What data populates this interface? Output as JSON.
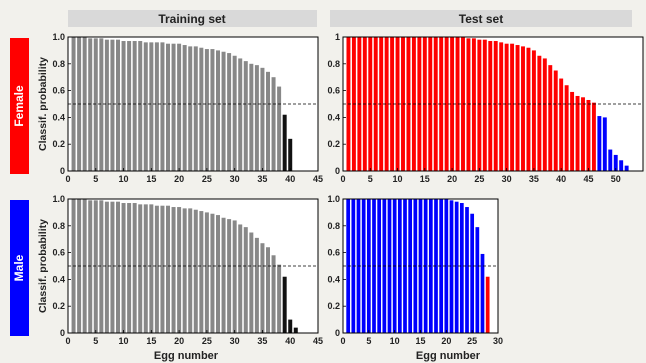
{
  "headers": {
    "training": "Training set",
    "test": "Test set"
  },
  "rows": {
    "female": {
      "label": "Female",
      "color": "#ff0000"
    },
    "male": {
      "label": "Male",
      "color": "#0000ff"
    }
  },
  "ylabel": "Classif. probability",
  "xlabel": "Egg number",
  "chart_data": [
    {
      "type": "bar",
      "panel": "training-female",
      "x": [
        1,
        2,
        3,
        4,
        5,
        6,
        7,
        8,
        9,
        10,
        11,
        12,
        13,
        14,
        15,
        16,
        17,
        18,
        19,
        20,
        21,
        22,
        23,
        24,
        25,
        26,
        27,
        28,
        29,
        30,
        31,
        32,
        33,
        34,
        35,
        36,
        37,
        38,
        39,
        40
      ],
      "values": [
        1.0,
        1.0,
        1.0,
        0.99,
        0.99,
        0.99,
        0.98,
        0.98,
        0.98,
        0.97,
        0.97,
        0.97,
        0.97,
        0.96,
        0.96,
        0.96,
        0.96,
        0.95,
        0.95,
        0.95,
        0.94,
        0.93,
        0.93,
        0.92,
        0.91,
        0.91,
        0.9,
        0.89,
        0.88,
        0.86,
        0.84,
        0.82,
        0.8,
        0.79,
        0.77,
        0.74,
        0.7,
        0.63,
        0.42,
        0.24
      ],
      "colors": [
        "#888888",
        "#888888",
        "#888888",
        "#888888",
        "#888888",
        "#888888",
        "#888888",
        "#888888",
        "#888888",
        "#888888",
        "#888888",
        "#888888",
        "#888888",
        "#888888",
        "#888888",
        "#888888",
        "#888888",
        "#888888",
        "#888888",
        "#888888",
        "#888888",
        "#888888",
        "#888888",
        "#888888",
        "#888888",
        "#888888",
        "#888888",
        "#888888",
        "#888888",
        "#888888",
        "#888888",
        "#888888",
        "#888888",
        "#888888",
        "#888888",
        "#888888",
        "#888888",
        "#888888",
        "#111111",
        "#111111"
      ],
      "xlim": [
        0,
        45
      ],
      "ylim": [
        0,
        1
      ],
      "xticks": [
        "0",
        "5",
        "10",
        "15",
        "20",
        "25",
        "30",
        "35",
        "40",
        "45"
      ],
      "yticks": [
        "0",
        "0.2",
        "0.4",
        "0.6",
        "0.8",
        "1.0"
      ],
      "threshold": 0.5
    },
    {
      "type": "bar",
      "panel": "test-female",
      "x": [
        1,
        2,
        3,
        4,
        5,
        6,
        7,
        8,
        9,
        10,
        11,
        12,
        13,
        14,
        15,
        16,
        17,
        18,
        19,
        20,
        21,
        22,
        23,
        24,
        25,
        26,
        27,
        28,
        29,
        30,
        31,
        32,
        33,
        34,
        35,
        36,
        37,
        38,
        39,
        40,
        41,
        42,
        43,
        44,
        45,
        46,
        47,
        48,
        49,
        50,
        51,
        52
      ],
      "values": [
        1.0,
        1.0,
        1.0,
        1.0,
        1.0,
        1.0,
        1.0,
        1.0,
        1.0,
        1.0,
        1.0,
        1.0,
        1.0,
        1.0,
        1.0,
        1.0,
        1.0,
        1.0,
        1.0,
        1.0,
        1.0,
        1.0,
        0.99,
        0.99,
        0.98,
        0.98,
        0.97,
        0.97,
        0.96,
        0.95,
        0.95,
        0.94,
        0.93,
        0.92,
        0.9,
        0.86,
        0.84,
        0.79,
        0.75,
        0.69,
        0.64,
        0.59,
        0.56,
        0.55,
        0.53,
        0.51,
        0.41,
        0.4,
        0.16,
        0.12,
        0.08,
        0.04
      ],
      "colors": [
        "#ff0000",
        "#ff0000",
        "#ff0000",
        "#ff0000",
        "#ff0000",
        "#ff0000",
        "#ff0000",
        "#ff0000",
        "#ff0000",
        "#ff0000",
        "#ff0000",
        "#ff0000",
        "#ff0000",
        "#ff0000",
        "#ff0000",
        "#ff0000",
        "#ff0000",
        "#ff0000",
        "#ff0000",
        "#ff0000",
        "#ff0000",
        "#ff0000",
        "#ff0000",
        "#ff0000",
        "#ff0000",
        "#ff0000",
        "#ff0000",
        "#ff0000",
        "#ff0000",
        "#ff0000",
        "#ff0000",
        "#ff0000",
        "#ff0000",
        "#ff0000",
        "#ff0000",
        "#ff0000",
        "#ff0000",
        "#ff0000",
        "#ff0000",
        "#ff0000",
        "#ff0000",
        "#ff0000",
        "#ff0000",
        "#ff0000",
        "#ff0000",
        "#ff0000",
        "#0000ff",
        "#0000ff",
        "#0000ff",
        "#0000ff",
        "#0000ff",
        "#0000ff"
      ],
      "xlim": [
        0,
        55
      ],
      "ylim": [
        0,
        1
      ],
      "xticks": [
        "0",
        "5",
        "10",
        "15",
        "20",
        "25",
        "30",
        "35",
        "40",
        "45",
        "50"
      ],
      "yticks": [
        "0",
        "0.2",
        "0.4",
        "0.6",
        "0.8",
        "1"
      ],
      "threshold": 0.5
    },
    {
      "type": "bar",
      "panel": "training-male",
      "x": [
        1,
        2,
        3,
        4,
        5,
        6,
        7,
        8,
        9,
        10,
        11,
        12,
        13,
        14,
        15,
        16,
        17,
        18,
        19,
        20,
        21,
        22,
        23,
        24,
        25,
        26,
        27,
        28,
        29,
        30,
        31,
        32,
        33,
        34,
        35,
        36,
        37,
        38,
        39,
        40,
        41
      ],
      "values": [
        1.0,
        1.0,
        1.0,
        0.99,
        0.99,
        0.99,
        0.98,
        0.98,
        0.98,
        0.97,
        0.97,
        0.97,
        0.96,
        0.96,
        0.96,
        0.95,
        0.95,
        0.95,
        0.94,
        0.94,
        0.93,
        0.93,
        0.92,
        0.91,
        0.9,
        0.89,
        0.88,
        0.86,
        0.85,
        0.84,
        0.81,
        0.79,
        0.75,
        0.71,
        0.67,
        0.64,
        0.58,
        0.51,
        0.42,
        0.1,
        0.04
      ],
      "colors": [
        "#888888",
        "#888888",
        "#888888",
        "#888888",
        "#888888",
        "#888888",
        "#888888",
        "#888888",
        "#888888",
        "#888888",
        "#888888",
        "#888888",
        "#888888",
        "#888888",
        "#888888",
        "#888888",
        "#888888",
        "#888888",
        "#888888",
        "#888888",
        "#888888",
        "#888888",
        "#888888",
        "#888888",
        "#888888",
        "#888888",
        "#888888",
        "#888888",
        "#888888",
        "#888888",
        "#888888",
        "#888888",
        "#888888",
        "#888888",
        "#888888",
        "#888888",
        "#888888",
        "#888888",
        "#111111",
        "#111111",
        "#111111"
      ],
      "xlim": [
        0,
        45
      ],
      "ylim": [
        0,
        1
      ],
      "xticks": [
        "0",
        "5",
        "10",
        "15",
        "20",
        "25",
        "30",
        "35",
        "40",
        "45"
      ],
      "yticks": [
        "0",
        "0.2",
        "0.4",
        "0.6",
        "0.8",
        "1.0"
      ],
      "threshold": 0.5
    },
    {
      "type": "bar",
      "panel": "test-male",
      "x": [
        1,
        2,
        3,
        4,
        5,
        6,
        7,
        8,
        9,
        10,
        11,
        12,
        13,
        14,
        15,
        16,
        17,
        18,
        19,
        20,
        21,
        22,
        23,
        24,
        25,
        26,
        27,
        28
      ],
      "values": [
        1.0,
        1.0,
        1.0,
        1.0,
        1.0,
        1.0,
        1.0,
        1.0,
        1.0,
        1.0,
        1.0,
        1.0,
        1.0,
        1.0,
        1.0,
        1.0,
        1.0,
        1.0,
        1.0,
        1.0,
        0.99,
        0.98,
        0.97,
        0.94,
        0.89,
        0.79,
        0.59,
        0.42
      ],
      "colors": [
        "#0000ff",
        "#0000ff",
        "#0000ff",
        "#0000ff",
        "#0000ff",
        "#0000ff",
        "#0000ff",
        "#0000ff",
        "#0000ff",
        "#0000ff",
        "#0000ff",
        "#0000ff",
        "#0000ff",
        "#0000ff",
        "#0000ff",
        "#0000ff",
        "#0000ff",
        "#0000ff",
        "#0000ff",
        "#0000ff",
        "#0000ff",
        "#0000ff",
        "#0000ff",
        "#0000ff",
        "#0000ff",
        "#0000ff",
        "#0000ff",
        "#ff0000"
      ],
      "xlim": [
        0,
        30
      ],
      "ylim": [
        0,
        1
      ],
      "xticks": [
        "0",
        "5",
        "10",
        "15",
        "20",
        "25",
        "30"
      ],
      "yticks": [
        "0",
        "0.2",
        "0.4",
        "0.6",
        "0.8",
        "1.0"
      ],
      "threshold": 0.5
    }
  ]
}
